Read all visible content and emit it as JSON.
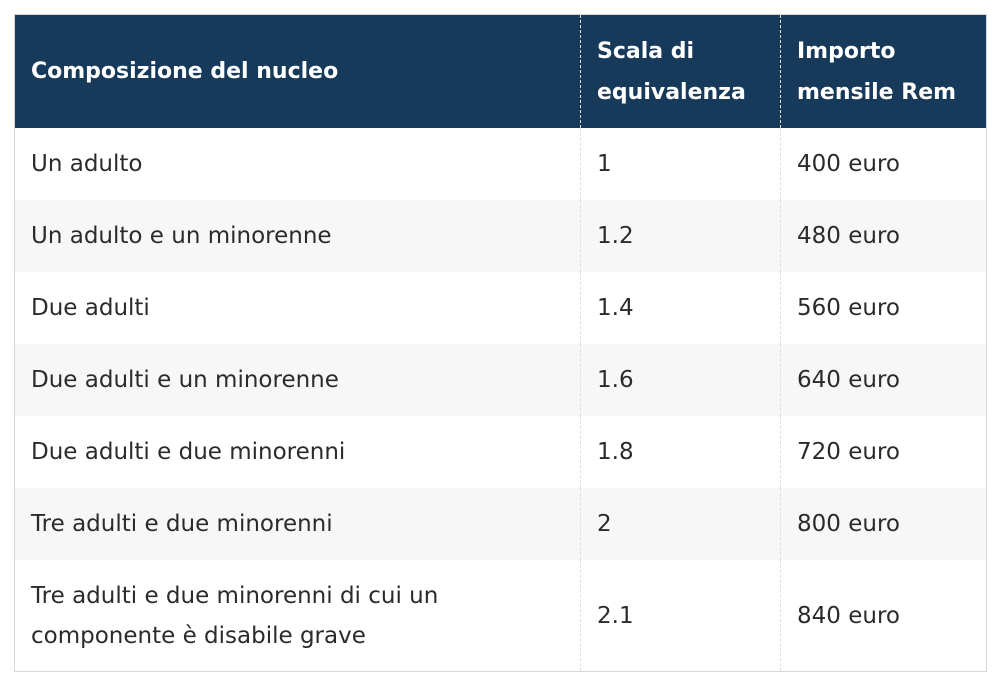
{
  "table": {
    "header": [
      "Composizione del nucleo",
      "Scala di equivalenza",
      "Importo mensile Rem"
    ],
    "rows": [
      [
        "Un adulto",
        "1",
        "400 euro"
      ],
      [
        "Un adulto e un minorenne",
        "1.2",
        "480 euro"
      ],
      [
        "Due adulti",
        "1.4",
        "560 euro"
      ],
      [
        "Due adulti e un minorenne",
        "1.6",
        "640 euro"
      ],
      [
        "Due adulti e due minorenni",
        "1.8",
        "720 euro"
      ],
      [
        "Tre adulti e due minorenni",
        "2",
        "800 euro"
      ],
      [
        "Tre adulti e due minorenni di cui un componente è disabile grave",
        "2.1",
        "840 euro"
      ]
    ]
  }
}
